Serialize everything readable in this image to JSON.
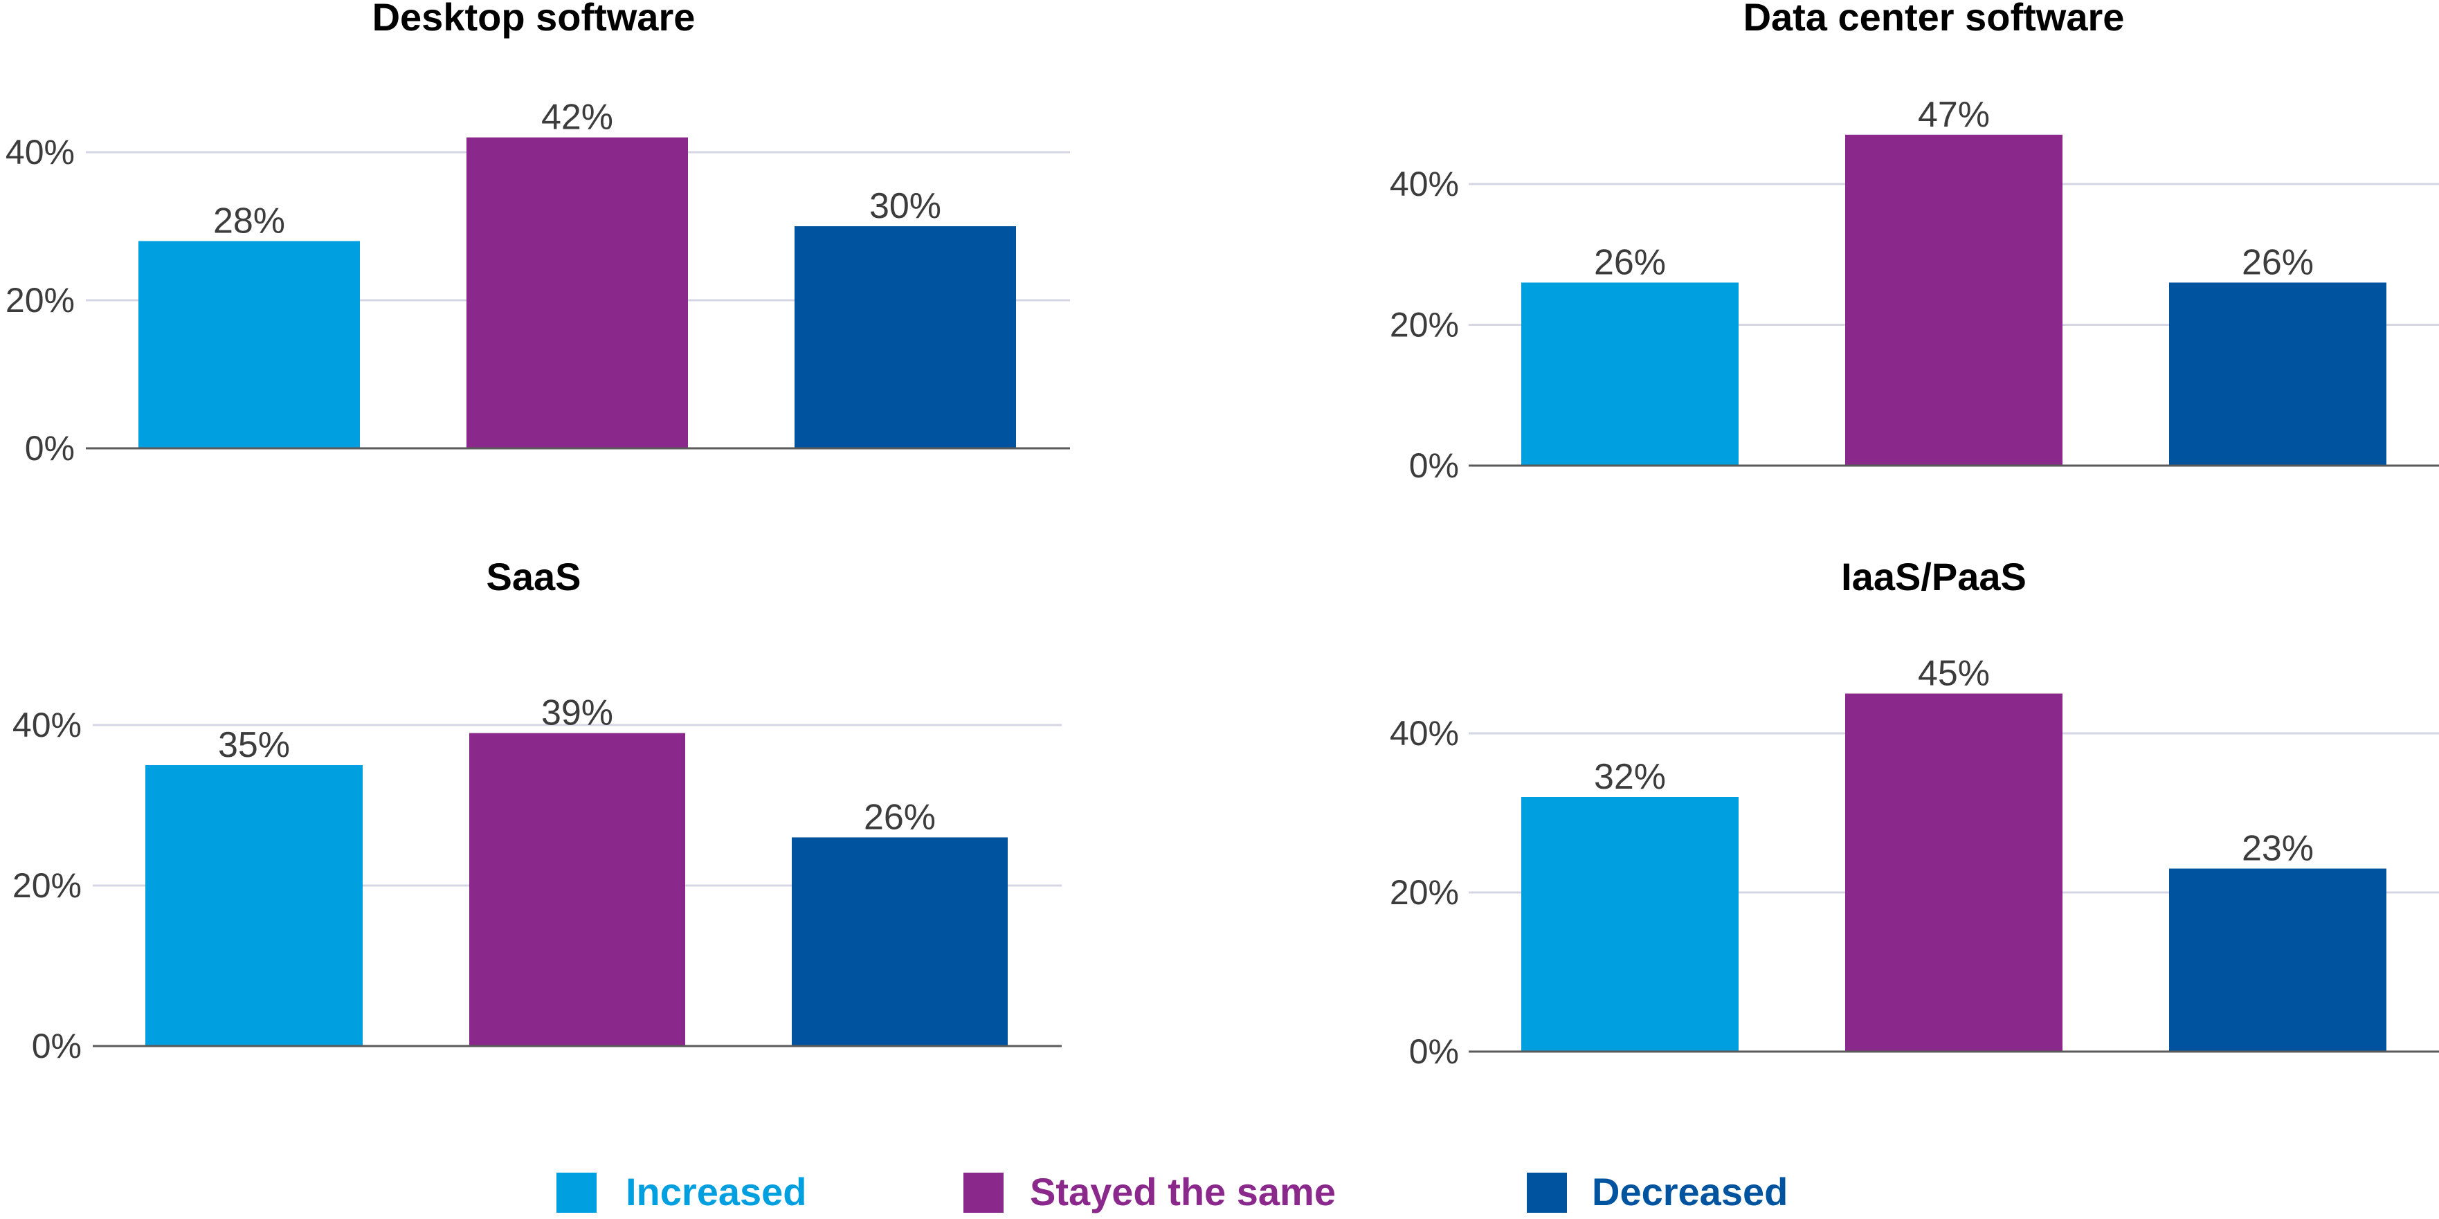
{
  "colors": {
    "increased": "#009fdf",
    "stayed": "#8a288b",
    "decreased": "#00539f",
    "grid": "#d6d6e4",
    "axis": "#5a5a5a",
    "text": "#3c3c3c"
  },
  "legend": [
    {
      "key": "increased",
      "label": "Increased"
    },
    {
      "key": "stayed",
      "label": "Stayed the same"
    },
    {
      "key": "decreased",
      "label": "Decreased"
    }
  ],
  "chart_data": [
    {
      "type": "bar",
      "title": "Desktop software",
      "categories": [
        "Increased",
        "Stayed the same",
        "Decreased"
      ],
      "values": [
        28,
        42,
        30
      ],
      "labels": [
        "28%",
        "42%",
        "30%"
      ],
      "yticks": [
        0,
        20,
        40
      ],
      "ytick_labels": [
        "0%",
        "20%",
        "40%"
      ],
      "ylim": [
        0,
        40
      ],
      "xlabel": "",
      "ylabel": "",
      "grid": true
    },
    {
      "type": "bar",
      "title": "Data center software",
      "categories": [
        "Increased",
        "Stayed the same",
        "Decreased"
      ],
      "values": [
        26,
        47,
        26
      ],
      "labels": [
        "26%",
        "47%",
        "26%"
      ],
      "yticks": [
        0,
        20,
        40
      ],
      "ytick_labels": [
        "0%",
        "20%",
        "40%"
      ],
      "ylim": [
        0,
        40
      ],
      "xlabel": "",
      "ylabel": "",
      "grid": true
    },
    {
      "type": "bar",
      "title": "SaaS",
      "categories": [
        "Increased",
        "Stayed the same",
        "Decreased"
      ],
      "values": [
        35,
        39,
        26
      ],
      "labels": [
        "35%",
        "39%",
        "26%"
      ],
      "yticks": [
        0,
        20,
        40
      ],
      "ytick_labels": [
        "0%",
        "20%",
        "40%"
      ],
      "ylim": [
        0,
        40
      ],
      "xlabel": "",
      "ylabel": "",
      "grid": true
    },
    {
      "type": "bar",
      "title": "IaaS/PaaS",
      "categories": [
        "Increased",
        "Stayed the same",
        "Decreased"
      ],
      "values": [
        32,
        45,
        23
      ],
      "labels": [
        "32%",
        "45%",
        "23%"
      ],
      "yticks": [
        0,
        20,
        40
      ],
      "ytick_labels": [
        "0%",
        "20%",
        "40%"
      ],
      "ylim": [
        0,
        40
      ],
      "xlabel": "",
      "ylabel": "",
      "grid": true
    }
  ]
}
